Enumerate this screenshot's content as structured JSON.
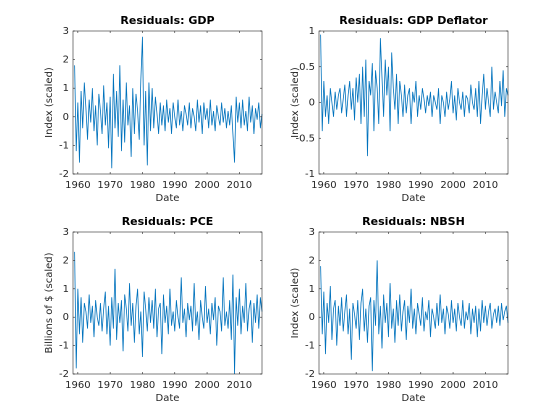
{
  "chart_data": [
    {
      "type": "line",
      "title": "Residuals: GDP",
      "x_label": "Date",
      "y_label": "Index (scaled)",
      "xlim": [
        1958.5,
        2017
      ],
      "xticks": [
        1960,
        1970,
        1980,
        1990,
        2000,
        2010
      ],
      "ylim": [
        -2,
        3
      ],
      "yticks": [
        -2,
        -1,
        0,
        1,
        2,
        3
      ],
      "x": [
        1959,
        1959.5,
        1960,
        1960.5,
        1961,
        1961.5,
        1962,
        1962.5,
        1963,
        1963.5,
        1964,
        1964.5,
        1965,
        1965.5,
        1966,
        1966.5,
        1967,
        1967.5,
        1968,
        1968.5,
        1969,
        1969.5,
        1970,
        1970.5,
        1971,
        1971.5,
        1972,
        1972.5,
        1973,
        1973.5,
        1974,
        1974.5,
        1975,
        1975.5,
        1976,
        1976.5,
        1977,
        1977.5,
        1978,
        1978.5,
        1979,
        1979.5,
        1980,
        1980.5,
        1981,
        1981.5,
        1982,
        1982.5,
        1983,
        1983.5,
        1984,
        1984.5,
        1985,
        1985.5,
        1986,
        1986.5,
        1987,
        1987.5,
        1988,
        1988.5,
        1989,
        1989.5,
        1990,
        1990.5,
        1991,
        1991.5,
        1992,
        1992.5,
        1993,
        1993.5,
        1994,
        1994.5,
        1995,
        1995.5,
        1996,
        1996.5,
        1997,
        1997.5,
        1998,
        1998.5,
        1999,
        1999.5,
        2000,
        2000.5,
        2001,
        2001.5,
        2002,
        2002.5,
        2003,
        2003.5,
        2004,
        2004.5,
        2005,
        2005.5,
        2006,
        2006.5,
        2007,
        2007.5,
        2008,
        2008.5,
        2009,
        2009.5,
        2010,
        2010.5,
        2011,
        2011.5,
        2012,
        2012.5,
        2013,
        2013.5,
        2014,
        2014.5,
        2015,
        2015.5,
        2016,
        2016.5,
        2017
      ],
      "series": [
        {
          "color": "#0072bd",
          "values": [
            1.8,
            -1.2,
            0.5,
            -1.6,
            0.9,
            -0.4,
            1.2,
            0.3,
            -0.8,
            0.6,
            -0.2,
            1.0,
            -0.5,
            0.4,
            -1.0,
            0.8,
            0.2,
            -0.6,
            1.1,
            -0.3,
            0.5,
            -1.1,
            0.7,
            -1.8,
            1.5,
            -0.4,
            0.9,
            -0.7,
            1.8,
            -1.2,
            0.6,
            -0.9,
            1.2,
            -0.3,
            0.4,
            -1.4,
            1.0,
            -0.6,
            0.8,
            0.2,
            -0.8,
            1.3,
            2.8,
            -1.0,
            0.9,
            -1.7,
            1.2,
            -0.5,
            1.0,
            -0.4,
            0.7,
            0.1,
            -0.6,
            0.5,
            -0.3,
            0.4,
            -0.5,
            0.6,
            -0.2,
            0.3,
            -0.6,
            0.5,
            0.0,
            -0.4,
            0.6,
            -0.3,
            0.2,
            -0.5,
            0.4,
            0.1,
            -0.3,
            0.5,
            -0.4,
            0.3,
            0.0,
            -0.5,
            0.6,
            -0.2,
            0.4,
            -0.6,
            0.5,
            -0.1,
            0.3,
            -0.4,
            0.6,
            -0.3,
            0.2,
            -0.5,
            0.4,
            0.0,
            -0.3,
            0.5,
            -0.2,
            0.3,
            -0.4,
            0.2,
            -0.3,
            0.4,
            -0.6,
            -1.6,
            0.7,
            -0.2,
            0.5,
            -0.4,
            0.6,
            -0.3,
            0.2,
            -0.5,
            0.7,
            -0.2,
            0.4,
            -0.6,
            0.3,
            -0.1,
            0.5,
            -0.4,
            0.1
          ]
        }
      ]
    },
    {
      "type": "line",
      "title": "Residuals: GDP Deflator",
      "x_label": "Date",
      "y_label": "Index (scaled)",
      "xlim": [
        1958.5,
        2017
      ],
      "xticks": [
        1960,
        1970,
        1980,
        1990,
        2000,
        2010
      ],
      "ylim": [
        -1,
        1
      ],
      "yticks": [
        -1,
        -0.5,
        0,
        0.5,
        1
      ],
      "x": [
        1959,
        1959.5,
        1960,
        1960.5,
        1961,
        1961.5,
        1962,
        1962.5,
        1963,
        1963.5,
        1964,
        1964.5,
        1965,
        1965.5,
        1966,
        1966.5,
        1967,
        1967.5,
        1968,
        1968.5,
        1969,
        1969.5,
        1970,
        1970.5,
        1971,
        1971.5,
        1972,
        1972.5,
        1973,
        1973.5,
        1974,
        1974.5,
        1975,
        1975.5,
        1976,
        1976.5,
        1977,
        1977.5,
        1978,
        1978.5,
        1979,
        1979.5,
        1980,
        1980.5,
        1981,
        1981.5,
        1982,
        1982.5,
        1983,
        1983.5,
        1984,
        1984.5,
        1985,
        1985.5,
        1986,
        1986.5,
        1987,
        1987.5,
        1988,
        1988.5,
        1989,
        1989.5,
        1990,
        1990.5,
        1991,
        1991.5,
        1992,
        1992.5,
        1993,
        1993.5,
        1994,
        1994.5,
        1995,
        1995.5,
        1996,
        1996.5,
        1997,
        1997.5,
        1998,
        1998.5,
        1999,
        1999.5,
        2000,
        2000.5,
        2001,
        2001.5,
        2002,
        2002.5,
        2003,
        2003.5,
        2004,
        2004.5,
        2005,
        2005.5,
        2006,
        2006.5,
        2007,
        2007.5,
        2008,
        2008.5,
        2009,
        2009.5,
        2010,
        2010.5,
        2011,
        2011.5,
        2012,
        2012.5,
        2013,
        2013.5,
        2014,
        2014.5,
        2015,
        2015.5,
        2016,
        2016.5,
        2017
      ],
      "series": [
        {
          "color": "#0072bd",
          "values": [
            0.95,
            -0.4,
            0.3,
            -0.2,
            0.1,
            -0.3,
            0.2,
            0.0,
            -0.2,
            0.15,
            -0.1,
            0.1,
            0.2,
            -0.15,
            0.05,
            0.25,
            -0.2,
            0.1,
            0.3,
            -0.1,
            0.2,
            -0.25,
            0.35,
            0.0,
            0.4,
            -0.3,
            0.5,
            -0.2,
            0.6,
            -0.75,
            0.3,
            0.1,
            0.55,
            -0.4,
            0.45,
            0.2,
            -0.3,
            0.9,
            0.35,
            -0.2,
            0.6,
            0.1,
            0.5,
            -0.4,
            0.7,
            0.2,
            -0.1,
            0.4,
            -0.3,
            0.3,
            0.1,
            -0.2,
            0.25,
            -0.15,
            0.1,
            0.2,
            -0.3,
            0.15,
            0.0,
            0.3,
            -0.2,
            0.1,
            -0.1,
            0.2,
            0.05,
            -0.15,
            0.1,
            -0.05,
            0.15,
            -0.2,
            0.1,
            0.0,
            -0.1,
            0.2,
            -0.3,
            0.1,
            0.0,
            -0.2,
            0.15,
            -0.1,
            0.05,
            0.3,
            -0.15,
            0.1,
            -0.25,
            0.2,
            0.0,
            -0.1,
            0.15,
            -0.2,
            0.1,
            0.05,
            -0.15,
            0.25,
            0.0,
            -0.1,
            0.2,
            -0.2,
            0.3,
            -0.3,
            0.1,
            0.4,
            -0.1,
            0.2,
            0.0,
            -0.2,
            0.5,
            -0.1,
            0.15,
            0.0,
            -0.15,
            0.3,
            -0.05,
            0.45,
            -0.2,
            0.2,
            0.1
          ]
        }
      ]
    },
    {
      "type": "line",
      "title": "Residuals: PCE",
      "x_label": "Date",
      "y_label": "Billions of $ (scaled)",
      "xlim": [
        1958.5,
        2017
      ],
      "xticks": [
        1960,
        1970,
        1980,
        1990,
        2000,
        2010
      ],
      "ylim": [
        -2,
        3
      ],
      "yticks": [
        -2,
        -1,
        0,
        1,
        2,
        3
      ],
      "x": [
        1959,
        1959.5,
        1960,
        1960.5,
        1961,
        1961.5,
        1962,
        1962.5,
        1963,
        1963.5,
        1964,
        1964.5,
        1965,
        1965.5,
        1966,
        1966.5,
        1967,
        1967.5,
        1968,
        1968.5,
        1969,
        1969.5,
        1970,
        1970.5,
        1971,
        1971.5,
        1972,
        1972.5,
        1973,
        1973.5,
        1974,
        1974.5,
        1975,
        1975.5,
        1976,
        1976.5,
        1977,
        1977.5,
        1978,
        1978.5,
        1979,
        1979.5,
        1980,
        1980.5,
        1981,
        1981.5,
        1982,
        1982.5,
        1983,
        1983.5,
        1984,
        1984.5,
        1985,
        1985.5,
        1986,
        1986.5,
        1987,
        1987.5,
        1988,
        1988.5,
        1989,
        1989.5,
        1990,
        1990.5,
        1991,
        1991.5,
        1992,
        1992.5,
        1993,
        1993.5,
        1994,
        1994.5,
        1995,
        1995.5,
        1996,
        1996.5,
        1997,
        1997.5,
        1998,
        1998.5,
        1999,
        1999.5,
        2000,
        2000.5,
        2001,
        2001.5,
        2002,
        2002.5,
        2003,
        2003.5,
        2004,
        2004.5,
        2005,
        2005.5,
        2006,
        2006.5,
        2007,
        2007.5,
        2008,
        2008.5,
        2009,
        2009.5,
        2010,
        2010.5,
        2011,
        2011.5,
        2012,
        2012.5,
        2013,
        2013.5,
        2014,
        2014.5,
        2015,
        2015.5,
        2016,
        2016.5,
        2017
      ],
      "series": [
        {
          "color": "#0072bd",
          "values": [
            2.3,
            -1.8,
            1.0,
            -0.6,
            0.7,
            -0.9,
            0.5,
            0.2,
            -0.4,
            0.8,
            -0.2,
            0.4,
            -0.7,
            0.6,
            0.0,
            -0.3,
            0.5,
            -0.5,
            0.3,
            0.9,
            -0.6,
            0.4,
            -1.0,
            0.7,
            -0.4,
            1.7,
            -0.8,
            0.5,
            -0.2,
            0.6,
            -1.2,
            0.8,
            0.3,
            -0.5,
            1.2,
            -0.3,
            0.5,
            -0.9,
            0.4,
            1.0,
            -0.6,
            0.2,
            -1.4,
            0.9,
            0.3,
            -0.5,
            0.7,
            -0.2,
            0.6,
            -0.4,
            1.0,
            -0.7,
            0.3,
            0.5,
            -1.3,
            0.8,
            -0.2,
            0.4,
            -0.6,
            1.0,
            -0.3,
            0.2,
            -0.5,
            0.6,
            0.0,
            -0.4,
            1.4,
            -0.2,
            0.3,
            -0.7,
            0.5,
            -0.1,
            0.4,
            -0.5,
            1.2,
            -0.3,
            0.2,
            -0.8,
            0.6,
            0.0,
            -0.4,
            1.1,
            -0.2,
            0.3,
            -0.6,
            0.5,
            -0.1,
            0.7,
            -1.0,
            0.4,
            0.2,
            -0.5,
            1.4,
            -0.3,
            0.2,
            -0.4,
            0.6,
            -0.8,
            1.5,
            -2.0,
            0.7,
            -0.3,
            1.0,
            -0.6,
            0.4,
            -0.2,
            1.2,
            -0.5,
            0.3,
            0.6,
            -0.9,
            0.5,
            -0.2,
            0.8,
            -0.4,
            0.7,
            0.2
          ]
        }
      ]
    },
    {
      "type": "line",
      "title": "Residuals: NBSH",
      "x_label": "Date",
      "y_label": "Index (scaled)",
      "xlim": [
        1958.5,
        2017
      ],
      "xticks": [
        1960,
        1970,
        1980,
        1990,
        2000,
        2010
      ],
      "ylim": [
        -2,
        3
      ],
      "yticks": [
        -2,
        -1,
        0,
        1,
        2,
        3
      ],
      "x": [
        1959,
        1959.5,
        1960,
        1960.5,
        1961,
        1961.5,
        1962,
        1962.5,
        1963,
        1963.5,
        1964,
        1964.5,
        1965,
        1965.5,
        1966,
        1966.5,
        1967,
        1967.5,
        1968,
        1968.5,
        1969,
        1969.5,
        1970,
        1970.5,
        1971,
        1971.5,
        1972,
        1972.5,
        1973,
        1973.5,
        1974,
        1974.5,
        1975,
        1975.5,
        1976,
        1976.5,
        1977,
        1977.5,
        1978,
        1978.5,
        1979,
        1979.5,
        1980,
        1980.5,
        1981,
        1981.5,
        1982,
        1982.5,
        1983,
        1983.5,
        1984,
        1984.5,
        1985,
        1985.5,
        1986,
        1986.5,
        1987,
        1987.5,
        1988,
        1988.5,
        1989,
        1989.5,
        1990,
        1990.5,
        1991,
        1991.5,
        1992,
        1992.5,
        1993,
        1993.5,
        1994,
        1994.5,
        1995,
        1995.5,
        1996,
        1996.5,
        1997,
        1997.5,
        1998,
        1998.5,
        1999,
        1999.5,
        2000,
        2000.5,
        2001,
        2001.5,
        2002,
        2002.5,
        2003,
        2003.5,
        2004,
        2004.5,
        2005,
        2005.5,
        2006,
        2006.5,
        2007,
        2007.5,
        2008,
        2008.5,
        2009,
        2009.5,
        2010,
        2010.5,
        2011,
        2011.5,
        2012,
        2012.5,
        2013,
        2013.5,
        2014,
        2014.5,
        2015,
        2015.5,
        2016,
        2016.5,
        2017
      ],
      "series": [
        {
          "color": "#0072bd",
          "values": [
            1.8,
            -0.6,
            0.9,
            -1.3,
            0.5,
            -0.2,
            1.1,
            -0.8,
            0.3,
            0.6,
            -1.0,
            0.4,
            -0.3,
            0.7,
            -0.5,
            0.2,
            0.8,
            -0.6,
            0.3,
            -1.5,
            0.5,
            0.1,
            -0.4,
            0.6,
            -0.8,
            0.5,
            1.0,
            -0.5,
            0.3,
            -0.9,
            0.4,
            0.7,
            -1.9,
            0.6,
            -0.3,
            2.0,
            -0.6,
            0.4,
            -1.1,
            0.8,
            -0.2,
            0.5,
            -0.7,
            1.2,
            -0.4,
            0.3,
            -0.9,
            0.6,
            -0.3,
            0.8,
            -0.5,
            0.2,
            0.6,
            -0.8,
            0.4,
            -0.2,
            1.0,
            -0.4,
            0.3,
            -0.6,
            0.5,
            0.1,
            -0.3,
            0.7,
            -0.5,
            0.2,
            -0.1,
            0.6,
            -0.7,
            0.3,
            0.0,
            -0.4,
            0.5,
            -0.3,
            0.8,
            -0.2,
            0.3,
            -0.6,
            0.4,
            0.1,
            -0.4,
            0.6,
            -0.2,
            0.3,
            -0.5,
            0.5,
            0.0,
            -0.3,
            0.6,
            -0.4,
            0.2,
            -0.1,
            0.5,
            -0.6,
            0.3,
            -0.2,
            0.4,
            -0.7,
            0.3,
            -0.5,
            0.6,
            -0.2,
            0.4,
            -0.3,
            0.2,
            0.5,
            -0.4,
            0.1,
            0.3,
            -0.2,
            0.4,
            -0.3,
            0.5,
            -0.1,
            0.2,
            0.4,
            -0.2
          ]
        }
      ]
    }
  ]
}
